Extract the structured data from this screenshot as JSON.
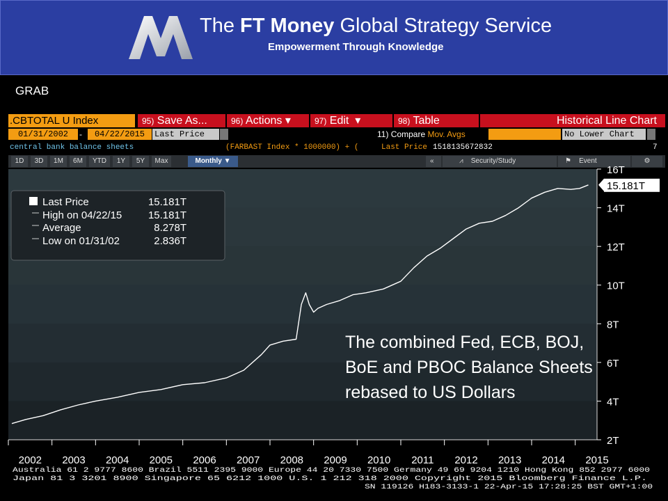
{
  "banner": {
    "title_prefix": "The",
    "title_bold": "FT Money",
    "title_suffix": "Global Strategy Service",
    "subtitle": "Empowerment Through Knowledge"
  },
  "grab_label": "GRAB",
  "toolbar": {
    "ticker": ".CBTOTAL U Index",
    "buttons": [
      {
        "num": "95)",
        "label": "Save As..."
      },
      {
        "num": "96)",
        "label": "Actions"
      },
      {
        "num": "97)",
        "label": "Edit"
      },
      {
        "num": "98)",
        "label": "Table"
      }
    ],
    "chart_title": "Historical Line Chart",
    "start_date": "01/31/2002",
    "date_sep": "-",
    "end_date": "04/22/2015",
    "field": "Last Price",
    "compare_label": "11) Compare",
    "compare_value": "Mov. Avgs",
    "lower_chart": "No Lower Chart",
    "description": "central bank balance sheets",
    "formula": "(FARBAST Index * 1000000) + (",
    "formula_field": "Last Price",
    "formula_value": "1518135672832",
    "counter": "7",
    "timeframes": [
      "1D",
      "3D",
      "1M",
      "6M",
      "YTD",
      "1Y",
      "5Y",
      "Max"
    ],
    "period": "Monthly",
    "period_arrow": "▼",
    "collapse": "«",
    "security_study": "Security/Study",
    "event": "Event",
    "gear": "⚙"
  },
  "legend": {
    "rows": [
      {
        "label": "Last Price",
        "value": "15.181T"
      },
      {
        "label": "High on 04/22/15",
        "value": "15.181T"
      },
      {
        "label": "Average",
        "value": "8.278T"
      },
      {
        "label": "Low on 01/31/02",
        "value": "2.836T"
      }
    ]
  },
  "last_value_tag": "15.181T",
  "annotation": "The combined Fed, ECB, BOJ, BoE and PBOC Balance Sheets rebased to US Dollars",
  "footer": {
    "line1": "Australia 61 2 9777 8600 Brazil 5511 2395 9000 Europe 44 20 7330 7500 Germany 49 69 9204 1210 Hong Kong 852 2977 6000",
    "line2": "Japan 81 3 3201 8900        Singapore 65 6212 1000        U.S. 1 212 318 2000        Copyright 2015 Bloomberg Finance L.P.",
    "line3": "SN 119126 H183-3133-1 22-Apr-15 17:28:25 BST  GMT+1:00"
  },
  "colors": {
    "banner": "#2b3ea2",
    "chart_bg": "#1f2a30",
    "line": "#ffffff",
    "amber": "#f39c12",
    "red": "#c8101e"
  },
  "chart_data": {
    "type": "line",
    "title": "",
    "xlabel": "",
    "ylabel": "",
    "ylim": [
      2,
      16
    ],
    "xlim": [
      2002,
      2015.5
    ],
    "yticks": [
      2,
      4,
      6,
      8,
      10,
      12,
      14,
      16
    ],
    "ytick_labels": [
      "2T",
      "4T",
      "6T",
      "8T",
      "10T",
      "12T",
      "14T",
      "16T"
    ],
    "xticks": [
      2002,
      2003,
      2004,
      2005,
      2006,
      2007,
      2008,
      2009,
      2010,
      2011,
      2012,
      2013,
      2014,
      2015
    ],
    "xtick_labels": [
      "2002",
      "2003",
      "2004",
      "2005",
      "2006",
      "2007",
      "2008",
      "2009",
      "2010",
      "2011",
      "2012",
      "2013",
      "2014",
      "2015"
    ],
    "unit": "T",
    "grid": false,
    "legend": "top-left",
    "series": [
      {
        "x": [
          2002.08,
          2002.4,
          2002.8,
          2003.2,
          2003.6,
          2004.0,
          2004.5,
          2005.0,
          2005.5,
          2006.0,
          2006.5,
          2007.0,
          2007.4,
          2007.8,
          2008.0,
          2008.3,
          2008.6,
          2008.72,
          2008.82,
          2008.9,
          2009.0,
          2009.1,
          2009.3,
          2009.6,
          2009.9,
          2010.2,
          2010.6,
          2011.0,
          2011.3,
          2011.6,
          2011.9,
          2012.2,
          2012.5,
          2012.8,
          2013.1,
          2013.4,
          2013.7,
          2014.0,
          2014.3,
          2014.6,
          2014.9,
          2015.1,
          2015.3
        ],
        "y": [
          2.84,
          3.05,
          3.25,
          3.55,
          3.8,
          4.0,
          4.2,
          4.45,
          4.6,
          4.85,
          4.95,
          5.2,
          5.6,
          6.4,
          6.9,
          7.1,
          7.2,
          9.0,
          9.6,
          9.0,
          8.6,
          8.8,
          9.0,
          9.2,
          9.5,
          9.6,
          9.8,
          10.2,
          10.9,
          11.5,
          11.9,
          12.4,
          12.9,
          13.2,
          13.3,
          13.6,
          14.0,
          14.5,
          14.8,
          15.0,
          14.95,
          15.0,
          15.18
        ]
      }
    ]
  }
}
